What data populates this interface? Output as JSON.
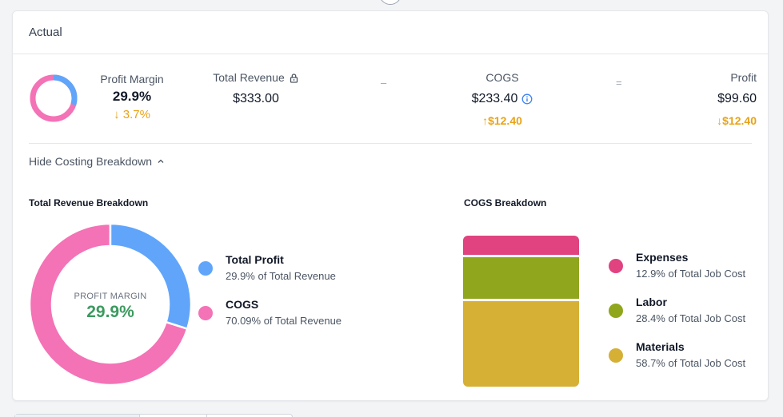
{
  "header": {
    "title": "Actual"
  },
  "summary": {
    "profit_margin": {
      "label": "Profit Margin",
      "value": "29.9%",
      "change": "↓ 3.7%",
      "fraction": 0.299
    },
    "total_revenue": {
      "label": "Total Revenue",
      "value": "$333.00"
    },
    "minus_sign": "–",
    "cogs": {
      "label": "COGS",
      "value": "$233.40",
      "change": "↑$12.40"
    },
    "equals_sign": "=",
    "profit": {
      "label": "Profit",
      "value": "$99.60",
      "change": "↓$12.40"
    }
  },
  "toggle": {
    "label": "Hide Costing Breakdown",
    "icon": "chevron-up-icon"
  },
  "revenue_breakdown": {
    "title": "Total Revenue Breakdown",
    "center_label": "PROFIT MARGIN",
    "center_value": "29.9%",
    "items": [
      {
        "name": "Total Profit",
        "sub": "29.9% of Total Revenue",
        "color": "#60a5fa",
        "fraction": 0.299
      },
      {
        "name": "COGS",
        "sub": "70.09% of Total Revenue",
        "color": "#f472b6",
        "fraction": 0.701
      }
    ]
  },
  "cogs_breakdown": {
    "title": "COGS Breakdown",
    "items": [
      {
        "name": "Expenses",
        "sub": "12.9% of Total Job Cost",
        "color": "#e0437f",
        "fraction": 0.129
      },
      {
        "name": "Labor",
        "sub": "28.4% of Total Job Cost",
        "color": "#8fa61d",
        "fraction": 0.284
      },
      {
        "name": "Materials",
        "sub": "58.7% of Total Job Cost",
        "color": "#d6b034",
        "fraction": 0.587
      }
    ]
  }
}
